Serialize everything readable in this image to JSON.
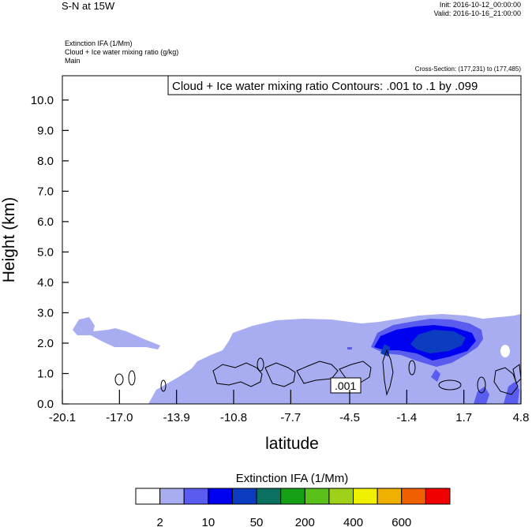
{
  "header": {
    "title": "S-N at 15W",
    "init": "Init: 2016-10-12_00:00:00",
    "valid": "Valid: 2016-10-16_21:00:00",
    "field_lines": [
      "Extinction IFA   (1/Mm)",
      "Cloud + Ice water mixing ratio   (g/kg)",
      "Main"
    ],
    "cross_section": "Cross-Section: (177,231) to (177,485)",
    "contour_label": "Cloud + Ice water mixing ratio Contours: .001 to .1 by .099"
  },
  "chart_data": {
    "type": "contour",
    "xlabel": "latitude",
    "ylabel": "Height (km)",
    "xlim": [
      -20.1,
      4.8
    ],
    "ylim": [
      0.0,
      10.8
    ],
    "xticks": [
      "-20.1",
      "-17.0",
      "-13.9",
      "-10.8",
      "-7.7",
      "-4.5",
      "-1.4",
      "1.7",
      "4.8"
    ],
    "xtick_values": [
      -20.1,
      -17.0,
      -13.9,
      -10.8,
      -7.7,
      -4.5,
      -1.4,
      1.7,
      4.8
    ],
    "yticks": [
      "0.0",
      "1.0",
      "2.0",
      "3.0",
      "4.0",
      "5.0",
      "6.0",
      "7.0",
      "8.0",
      "9.0",
      "10.0"
    ],
    "ytick_values": [
      0,
      1,
      2,
      3,
      4,
      5,
      6,
      7,
      8,
      9,
      10
    ],
    "contour_inline_label": ".001",
    "colorbar": {
      "title": "Extinction IFA  (1/Mm)",
      "colors": [
        "#ffffff",
        "#a8acf0",
        "#5a5cf0",
        "#0000f0",
        "#0c3cc0",
        "#0a7060",
        "#16a016",
        "#5ac01a",
        "#a0d01a",
        "#f0f000",
        "#f0b000",
        "#f06000",
        "#f00000"
      ],
      "labels": [
        "2",
        "10",
        "50",
        "200",
        "400",
        "600"
      ]
    }
  }
}
